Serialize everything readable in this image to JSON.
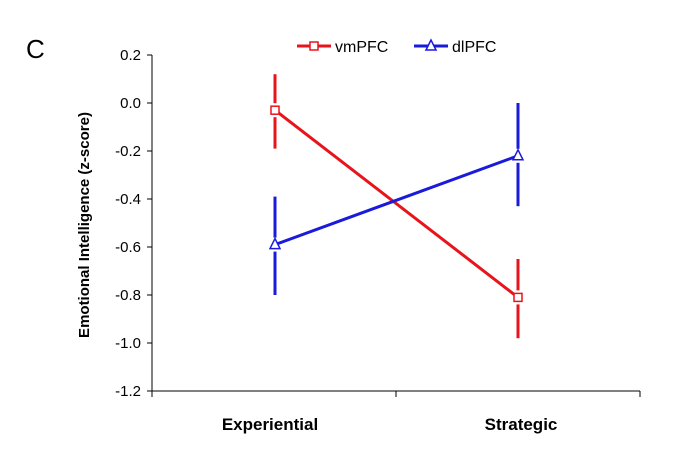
{
  "panel_label": "C",
  "chart_data": {
    "type": "line",
    "categories": [
      "Experiential",
      "Strategic"
    ],
    "xlabel": "",
    "ylabel": "Emotional Intelligence (z-score)",
    "ylim": [
      -1.2,
      0.2
    ],
    "yticks": [
      -1.2,
      -1.0,
      -0.8,
      -0.6,
      -0.4,
      -0.2,
      0.0,
      0.2
    ],
    "ytick_labels": [
      "-1.2",
      "-1.0",
      "-0.8",
      "-0.6",
      "-0.4",
      "-0.2",
      "0.0",
      "0.2"
    ],
    "grid": false,
    "legend_position": "top",
    "series": [
      {
        "name": "vmPFC",
        "color": "#e8141c",
        "marker": "square",
        "values": [
          -0.03,
          -0.81
        ],
        "error_upper": [
          0.12,
          -0.65
        ],
        "error_lower": [
          -0.19,
          -0.98
        ]
      },
      {
        "name": "dlPFC",
        "color": "#1a1adb",
        "marker": "triangle",
        "values": [
          -0.59,
          -0.22
        ],
        "error_upper": [
          -0.39,
          0.0
        ],
        "error_lower": [
          -0.8,
          -0.43
        ]
      }
    ]
  }
}
